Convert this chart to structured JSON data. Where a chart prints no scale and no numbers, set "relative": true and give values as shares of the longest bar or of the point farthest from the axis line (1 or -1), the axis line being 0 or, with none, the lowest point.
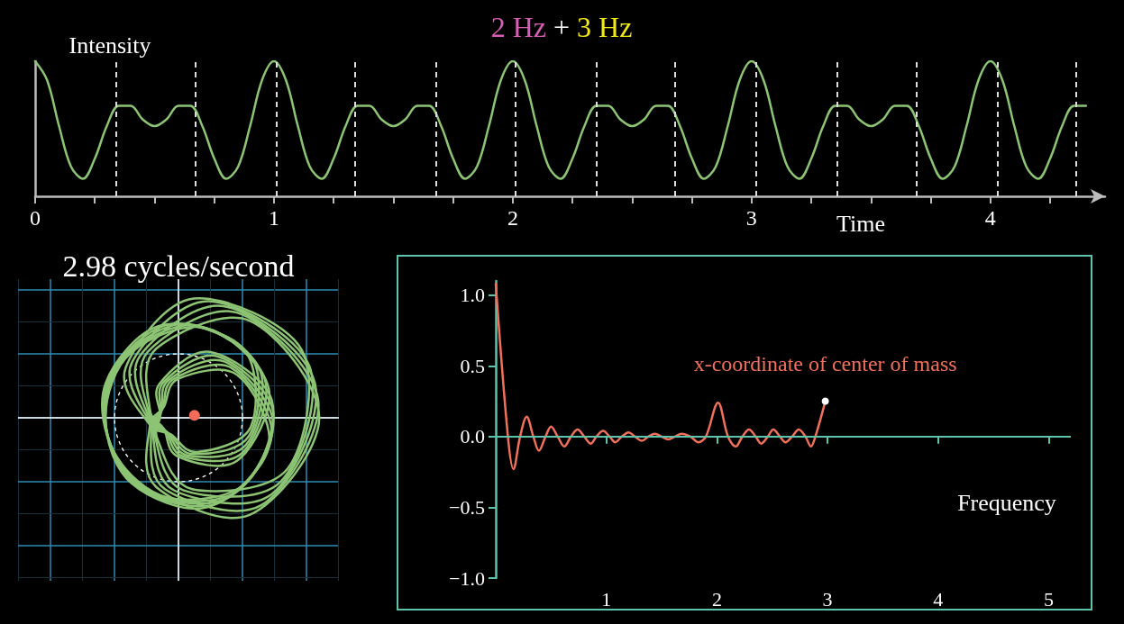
{
  "chart_data": [
    {
      "type": "line",
      "title": "2 Hz + 3 Hz",
      "xlabel": "Time",
      "ylabel": "Intensity",
      "relative": true,
      "marker": "none",
      "grid": false,
      "x": [
        0,
        0.05,
        0.1,
        0.15,
        0.2,
        0.25,
        0.3,
        0.35,
        0.4,
        0.45,
        0.5,
        0.55,
        0.6,
        0.65,
        0.7,
        0.75,
        0.8,
        0.85,
        0.9,
        0.95,
        1,
        1.05,
        1.1,
        1.15,
        1.2,
        1.25,
        1.3,
        1.35,
        1.4,
        1.45,
        1.5,
        1.55,
        1.6,
        1.65,
        1.7,
        1.75,
        1.8,
        1.85,
        1.9,
        1.95,
        2,
        2.05,
        2.1,
        2.15,
        2.2,
        2.25,
        2.3,
        2.35,
        2.4,
        2.45,
        2.5,
        2.55,
        2.6,
        2.65,
        2.7,
        2.75,
        2.8,
        2.85,
        2.9,
        2.95,
        3,
        3.05,
        3.1,
        3.15,
        3.2,
        3.25,
        3.3,
        3.35,
        3.4,
        3.45,
        3.5,
        3.55,
        3.6,
        3.65,
        3.7,
        3.75,
        3.8,
        3.85,
        3.9,
        3.95,
        4,
        4.05,
        4.1,
        4.15,
        4.2,
        4.25,
        4.3,
        4.35,
        4.4
      ],
      "series": [
        {
          "color": "#8cc474",
          "values": [
            1,
            0.86,
            0.52,
            0.22,
            0.13,
            0.28,
            0.52,
            0.67,
            0.67,
            0.57,
            0.52,
            0.57,
            0.67,
            0.67,
            0.52,
            0.28,
            0.13,
            0.22,
            0.52,
            0.86,
            1,
            0.86,
            0.52,
            0.22,
            0.13,
            0.28,
            0.52,
            0.67,
            0.67,
            0.57,
            0.52,
            0.57,
            0.67,
            0.67,
            0.52,
            0.28,
            0.13,
            0.22,
            0.52,
            0.86,
            1,
            0.86,
            0.52,
            0.22,
            0.13,
            0.28,
            0.52,
            0.67,
            0.67,
            0.57,
            0.52,
            0.57,
            0.67,
            0.67,
            0.52,
            0.28,
            0.13,
            0.22,
            0.52,
            0.86,
            1,
            0.86,
            0.52,
            0.22,
            0.13,
            0.28,
            0.52,
            0.67,
            0.67,
            0.57,
            0.52,
            0.57,
            0.67,
            0.67,
            0.52,
            0.28,
            0.13,
            0.22,
            0.52,
            0.86,
            1,
            0.86,
            0.52,
            0.22,
            0.13,
            0.28,
            0.52,
            0.67,
            0.67
          ]
        }
      ],
      "xlim": [
        0,
        4.48
      ],
      "xticks": [
        0,
        {
          "value": 0.25,
          "label": null
        },
        {
          "value": 0.5,
          "label": null
        },
        {
          "value": 0.75,
          "label": null
        },
        1,
        {
          "value": 1.25,
          "label": null
        },
        {
          "value": 1.5,
          "label": null
        },
        {
          "value": 1.75,
          "label": null
        },
        2,
        {
          "value": 2.25,
          "label": null
        },
        {
          "value": 2.5,
          "label": null
        },
        {
          "value": 2.75,
          "label": null
        },
        3,
        {
          "value": 3.25,
          "label": null
        },
        {
          "value": 3.5,
          "label": null
        },
        {
          "value": 3.75,
          "label": null
        },
        4,
        {
          "value": 4.25,
          "label": null
        }
      ],
      "ref_lines": [
        {
          "axis": "x",
          "value": 0.34,
          "color": "#dddddd",
          "line_style": "dashed"
        },
        {
          "axis": "x",
          "value": 0.67,
          "color": "#dddddd",
          "line_style": "dashed"
        },
        {
          "axis": "x",
          "value": 1.01,
          "color": "#dddddd",
          "line_style": "dashed"
        },
        {
          "axis": "x",
          "value": 1.34,
          "color": "#dddddd",
          "line_style": "dashed"
        },
        {
          "axis": "x",
          "value": 1.68,
          "color": "#dddddd",
          "line_style": "dashed"
        },
        {
          "axis": "x",
          "value": 2.01,
          "color": "#dddddd",
          "line_style": "dashed"
        },
        {
          "axis": "x",
          "value": 2.35,
          "color": "#dddddd",
          "line_style": "dashed"
        },
        {
          "axis": "x",
          "value": 2.68,
          "color": "#dddddd",
          "line_style": "dashed"
        },
        {
          "axis": "x",
          "value": 3.02,
          "color": "#dddddd",
          "line_style": "dashed"
        },
        {
          "axis": "x",
          "value": 3.36,
          "color": "#dddddd",
          "line_style": "dashed"
        },
        {
          "axis": "x",
          "value": 3.69,
          "color": "#dddddd",
          "line_style": "dashed"
        },
        {
          "axis": "x",
          "value": 4.03,
          "color": "#dddddd",
          "line_style": "dashed"
        },
        {
          "axis": "x",
          "value": 4.36,
          "color": "#dddddd",
          "line_style": "dashed"
        }
      ]
    },
    {
      "type": "other",
      "title": "2.98 cycles/second"
    },
    {
      "type": "line",
      "xlabel": "Frequency",
      "marker": "none",
      "grid": false,
      "x": [
        0,
        0.11,
        0.16,
        0.22,
        0.28,
        0.34,
        0.39,
        0.45,
        0.5,
        0.56,
        0.62,
        0.68,
        0.74,
        0.8,
        0.86,
        0.91,
        0.97,
        1.03,
        1.08,
        1.14,
        1.2,
        1.26,
        1.32,
        1.38,
        1.44,
        1.5,
        1.56,
        1.62,
        1.68,
        1.76,
        1.83,
        1.9,
        2.01,
        2.1,
        2.17,
        2.23,
        2.29,
        2.35,
        2.4,
        2.46,
        2.51,
        2.57,
        2.62,
        2.68,
        2.74,
        2.8,
        2.85,
        2.89,
        2.98
      ],
      "series": [
        {
          "name": "x-coordinate of center of mass",
          "color": "#f0705a",
          "values": [
            1.08,
            0,
            -0.23,
            0,
            0.14,
            0,
            -0.1,
            0,
            0.07,
            0,
            -0.07,
            0,
            0.05,
            0,
            -0.05,
            0,
            0.04,
            0,
            -0.04,
            0,
            0.03,
            0,
            -0.03,
            0,
            0.02,
            0,
            -0.02,
            0,
            0.02,
            0,
            -0.04,
            0,
            0.24,
            0,
            -0.07,
            0,
            0.05,
            0,
            -0.05,
            0,
            0.05,
            0,
            -0.04,
            0,
            0.05,
            0,
            -0.07,
            0,
            0.25
          ]
        }
      ],
      "xlim": [
        0,
        5.2
      ],
      "ylim": [
        -1,
        1.1
      ],
      "xticks": [
        1,
        2,
        3,
        4,
        5
      ],
      "ref_lines": [
        {
          "axis": "y",
          "value": 0,
          "color": "#5cc4aa"
        }
      ],
      "yticks": [
        {
          "value": -1,
          "label": "−1.0"
        },
        {
          "value": -0.5,
          "label": "−0.5"
        },
        {
          "value": 0,
          "label": "0.0"
        },
        {
          "value": 0.5,
          "label": "0.5"
        },
        {
          "value": 1,
          "label": "1.0"
        }
      ]
    }
  ]
}
